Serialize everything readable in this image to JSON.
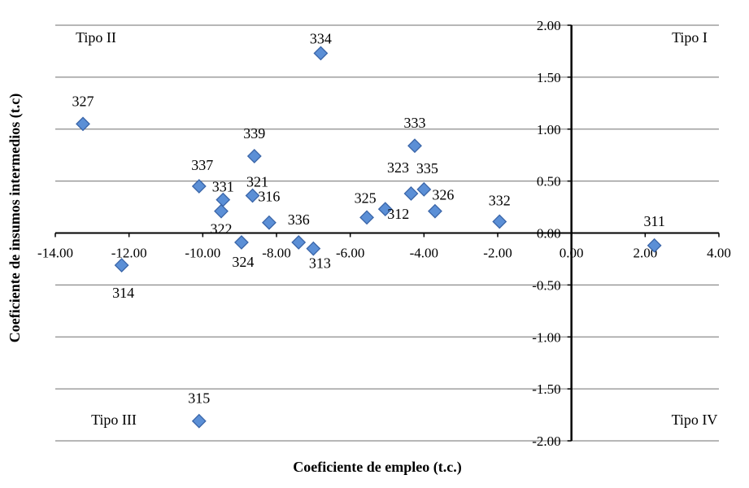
{
  "chart_data": {
    "type": "scatter",
    "xlabel": "Coeficiente de empleo (t.c.)",
    "ylabel": "Coeficiente de insumos intermedios (t.c)",
    "xlim": [
      -14,
      4
    ],
    "ylim": [
      -2,
      2
    ],
    "x_ticks": [
      "-14.00",
      "-12.00",
      "-10.00",
      "-8.00",
      "-6.00",
      "-4.00",
      "-2.00",
      "0.00",
      "2.00",
      "4.00"
    ],
    "y_ticks": [
      "2.00",
      "1.50",
      "1.00",
      "0.50",
      "0.00",
      "-0.50",
      "-1.00",
      "-1.50",
      "-2.00"
    ],
    "grid": "horizontal",
    "marker": "diamond",
    "marker_color": "#5b8fd6",
    "marker_edge_color": "#3a65a8",
    "quadrant_labels": {
      "top_left": "Tipo II",
      "top_right": "Tipo I",
      "bottom_left": "Tipo III",
      "bottom_right": "Tipo IV"
    },
    "points": [
      {
        "label": "311",
        "x": 2.25,
        "y": -0.12
      },
      {
        "label": "312",
        "x": -5.05,
        "y": 0.23
      },
      {
        "label": "313",
        "x": -7.0,
        "y": -0.15
      },
      {
        "label": "314",
        "x": -12.2,
        "y": -0.31
      },
      {
        "label": "315",
        "x": -10.1,
        "y": -1.81
      },
      {
        "label": "316",
        "x": -8.2,
        "y": 0.1
      },
      {
        "label": "321",
        "x": -8.65,
        "y": 0.36
      },
      {
        "label": "322",
        "x": -9.5,
        "y": 0.21
      },
      {
        "label": "323",
        "x": -4.35,
        "y": 0.38
      },
      {
        "label": "324",
        "x": -8.95,
        "y": -0.09
      },
      {
        "label": "325",
        "x": -5.55,
        "y": 0.15
      },
      {
        "label": "326",
        "x": -3.7,
        "y": 0.21
      },
      {
        "label": "327",
        "x": -13.25,
        "y": 1.05
      },
      {
        "label": "331",
        "x": -9.45,
        "y": 0.32
      },
      {
        "label": "332",
        "x": -1.95,
        "y": 0.11
      },
      {
        "label": "333",
        "x": -4.25,
        "y": 0.84
      },
      {
        "label": "334",
        "x": -6.8,
        "y": 1.73
      },
      {
        "label": "335",
        "x": -4.0,
        "y": 0.42
      },
      {
        "label": "336",
        "x": -7.4,
        "y": -0.09
      },
      {
        "label": "337",
        "x": -10.1,
        "y": 0.45
      },
      {
        "label": "339",
        "x": -8.6,
        "y": 0.74
      }
    ]
  }
}
